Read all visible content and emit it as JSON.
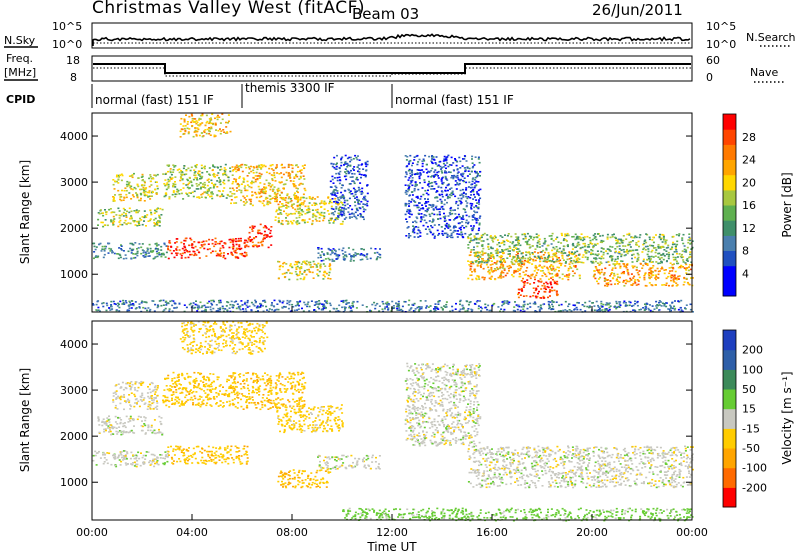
{
  "header": {
    "title": "Christmas Valley West (fitACF)",
    "beam": "Beam 03",
    "date": "26/Jun/2011"
  },
  "panels": {
    "nsky_label": "N.Sky",
    "nsearch_label": "N.Search",
    "freq_label_line1": "Freq.",
    "freq_label_line2": "[MHz]",
    "nave_label": "Nave",
    "cpid_label": "CPID",
    "nsky_ticks": [
      "10^5",
      "10^0"
    ],
    "nsearch_ticks": [
      "10^5",
      "10^0"
    ],
    "freq_ticks": [
      "18",
      "8"
    ],
    "nave_ticks": [
      "60",
      "0"
    ]
  },
  "cpid_segments": [
    {
      "label": "normal (fast) 151 IF",
      "start": 0,
      "end": 6
    },
    {
      "label": "themis 3300 IF",
      "start": 6,
      "end": 12
    },
    {
      "label": "normal (fast) 151 IF",
      "start": 12,
      "end": 24
    }
  ],
  "colorbars": {
    "power": {
      "title": "Power [dB]",
      "ticks": [
        "28",
        "24",
        "20",
        "16",
        "12",
        "8",
        "4"
      ],
      "colors": [
        "#0000ff",
        "#0000ff",
        "#2050c0",
        "#4a7fae",
        "#3f8f6a",
        "#5fb050",
        "#a8c840",
        "#ffd700",
        "#ffa500",
        "#ff7a00",
        "#ff4500",
        "#ff0000"
      ]
    },
    "velocity": {
      "title": "Velocity [m s⁻¹]",
      "ticks": [
        "200",
        "100",
        "50",
        "15",
        "-15",
        "-50",
        "-100",
        "-200"
      ],
      "colors": [
        "#ff0000",
        "#ff6a00",
        "#ffa500",
        "#ffcc00",
        "#c8c8c0",
        "#66cc33",
        "#3c8a5a",
        "#2e5fa8",
        "#1e3fbf"
      ]
    }
  },
  "axes": {
    "xlabel": "Time UT",
    "ylabel": "Slant Range [km]",
    "xticks": [
      "00:00",
      "04:00",
      "08:00",
      "12:00",
      "16:00",
      "20:00",
      "00:00"
    ],
    "yticks": [
      "4000",
      "3000",
      "2000",
      "1000"
    ]
  },
  "chart_data": [
    {
      "type": "heatmap",
      "title": "Power [dB]",
      "xlabel": "Time UT",
      "ylabel": "Slant Range [km]",
      "xlim": [
        0,
        24
      ],
      "ylim": [
        180,
        4500
      ],
      "zlim": [
        0,
        30
      ],
      "bands": [
        {
          "t0": 0.2,
          "t1": 2.8,
          "r0": 2050,
          "r1": 2450,
          "v": 16
        },
        {
          "t0": 0.8,
          "t1": 2.6,
          "r0": 2600,
          "r1": 3200,
          "v": 18
        },
        {
          "t0": 0.0,
          "t1": 3.0,
          "r0": 1350,
          "r1": 1700,
          "v": 10
        },
        {
          "t0": 3.0,
          "t1": 6.2,
          "r0": 1350,
          "r1": 1800,
          "v": 28
        },
        {
          "t0": 2.8,
          "t1": 5.5,
          "r0": 2650,
          "r1": 3400,
          "v": 16
        },
        {
          "t0": 5.5,
          "t1": 8.5,
          "r0": 2500,
          "r1": 3400,
          "v": 20
        },
        {
          "t0": 6.2,
          "t1": 7.2,
          "r0": 1600,
          "r1": 2100,
          "v": 28
        },
        {
          "t0": 7.3,
          "t1": 10.0,
          "r0": 2100,
          "r1": 2700,
          "v": 18
        },
        {
          "t0": 7.4,
          "t1": 9.5,
          "r0": 900,
          "r1": 1300,
          "v": 18
        },
        {
          "t0": 9.0,
          "t1": 11.5,
          "r0": 1300,
          "r1": 1600,
          "v": 8
        },
        {
          "t0": 9.5,
          "t1": 11.0,
          "r0": 2200,
          "r1": 3600,
          "v": 6
        },
        {
          "t0": 3.5,
          "t1": 5.5,
          "r0": 4000,
          "r1": 4500,
          "v": 20
        },
        {
          "t0": 15.0,
          "t1": 19.5,
          "r0": 900,
          "r1": 1500,
          "v": 22
        },
        {
          "t0": 17.0,
          "t1": 18.6,
          "r0": 500,
          "r1": 900,
          "v": 28
        },
        {
          "t0": 15.0,
          "t1": 24.0,
          "r0": 1250,
          "r1": 1900,
          "v": 14
        },
        {
          "t0": 20.0,
          "t1": 24.0,
          "r0": 750,
          "r1": 1250,
          "v": 22
        },
        {
          "t0": 12.5,
          "t1": 15.5,
          "r0": 1800,
          "r1": 3600,
          "v": 6
        },
        {
          "t0": 0.0,
          "t1": 24.0,
          "r0": 200,
          "r1": 450,
          "v": 8
        }
      ]
    },
    {
      "type": "heatmap",
      "title": "Velocity [m s⁻¹]",
      "xlabel": "Time UT",
      "ylabel": "Slant Range [km]",
      "xlim": [
        0,
        24
      ],
      "ylim": [
        180,
        4500
      ],
      "zlim": [
        -200,
        200
      ],
      "bands": [
        {
          "t0": 0.2,
          "t1": 2.8,
          "r0": 2050,
          "r1": 2450,
          "v": 0
        },
        {
          "t0": 0.8,
          "t1": 2.6,
          "r0": 2600,
          "r1": 3200,
          "v": -10
        },
        {
          "t0": 0.0,
          "t1": 3.0,
          "r0": 1350,
          "r1": 1700,
          "v": 0
        },
        {
          "t0": 3.0,
          "t1": 6.2,
          "r0": 1400,
          "r1": 1800,
          "v": -40
        },
        {
          "t0": 2.8,
          "t1": 5.5,
          "r0": 2650,
          "r1": 3400,
          "v": -35
        },
        {
          "t0": 5.5,
          "t1": 8.5,
          "r0": 2600,
          "r1": 3400,
          "v": -40
        },
        {
          "t0": 7.3,
          "t1": 10.0,
          "r0": 2100,
          "r1": 2700,
          "v": -30
        },
        {
          "t0": 7.4,
          "t1": 9.5,
          "r0": 900,
          "r1": 1300,
          "v": -45
        },
        {
          "t0": 9.0,
          "t1": 11.5,
          "r0": 1300,
          "r1": 1600,
          "v": 0
        },
        {
          "t0": 15.0,
          "t1": 24.0,
          "r0": 900,
          "r1": 1800,
          "v": 0
        },
        {
          "t0": 12.5,
          "t1": 15.5,
          "r0": 1800,
          "r1": 3600,
          "v": 0
        },
        {
          "t0": 10.0,
          "t1": 24.0,
          "r0": 180,
          "r1": 450,
          "v": 30
        },
        {
          "t0": 3.5,
          "t1": 7.0,
          "r0": 3800,
          "r1": 4500,
          "v": -30
        }
      ]
    }
  ]
}
